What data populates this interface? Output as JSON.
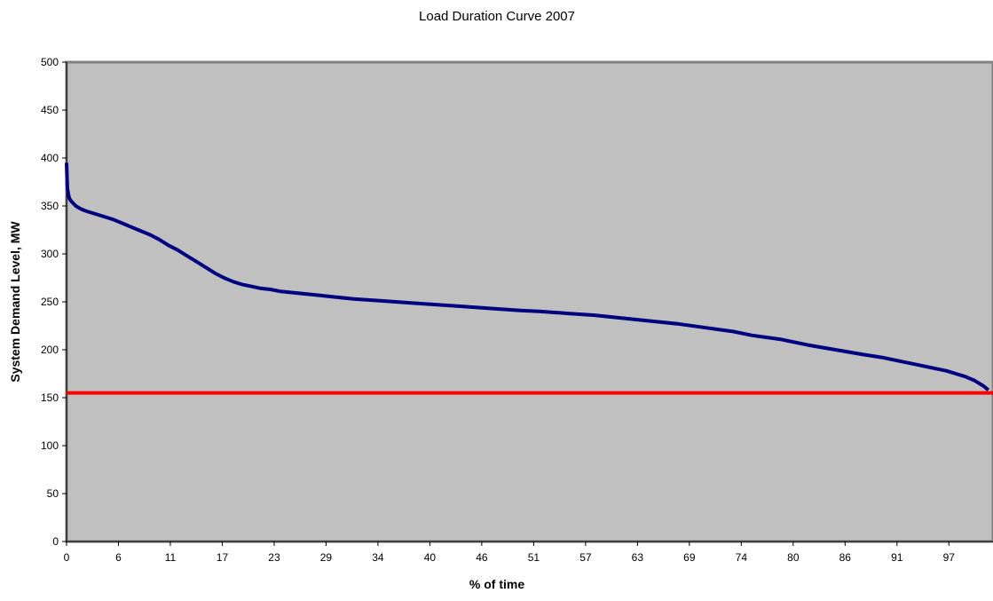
{
  "chart_data": {
    "type": "line",
    "title": "Load Duration Curve 2007",
    "xlabel": "% of time",
    "ylabel": "System Demand Level, MW",
    "xlim": [
      0,
      100
    ],
    "ylim": [
      0,
      500
    ],
    "grid": false,
    "x_tick_labels": [
      "0",
      "6",
      "11",
      "17",
      "23",
      "29",
      "34",
      "40",
      "46",
      "51",
      "57",
      "63",
      "69",
      "74",
      "80",
      "86",
      "91",
      "97"
    ],
    "y_tick_labels": [
      "0",
      "50",
      "100",
      "150",
      "200",
      "250",
      "300",
      "350",
      "400",
      "450",
      "500"
    ],
    "colors": {
      "plot_background": "#c0c0c0",
      "plot_border": "#808080",
      "load_curve": "#000080",
      "threshold_line": "#ff0000"
    },
    "series": [
      {
        "values_x": [
          0,
          0.05,
          0.1,
          0.2,
          0.3,
          0.5,
          1,
          1.5,
          2,
          3,
          4,
          5,
          6,
          7,
          8,
          9,
          10,
          11,
          12,
          13,
          14,
          15,
          16,
          17,
          18,
          19,
          20,
          21,
          22,
          23,
          25,
          27,
          29,
          31,
          34,
          37,
          40,
          43,
          46,
          49,
          51,
          54,
          57,
          60,
          63,
          66,
          69,
          72,
          74,
          77,
          80,
          83,
          86,
          88,
          91,
          93,
          95,
          96,
          97,
          98,
          98.5,
          99,
          99.5
        ],
        "values_y": [
          395,
          380,
          368,
          362,
          358,
          355,
          350,
          347,
          345,
          342,
          339,
          336,
          332,
          328,
          324,
          320,
          315,
          309,
          304,
          298,
          292,
          286,
          280,
          275,
          271,
          268,
          266,
          264,
          263,
          261,
          259,
          257,
          255,
          253,
          251,
          249,
          247,
          245,
          243,
          241,
          240,
          238,
          236,
          233,
          230,
          227,
          223,
          219,
          215,
          211,
          205,
          200,
          195,
          192,
          186,
          182,
          178,
          175,
          172,
          168,
          165,
          162,
          158
        ]
      },
      {
        "values_x": [
          0,
          100
        ],
        "values_y": [
          155,
          155
        ]
      }
    ]
  }
}
